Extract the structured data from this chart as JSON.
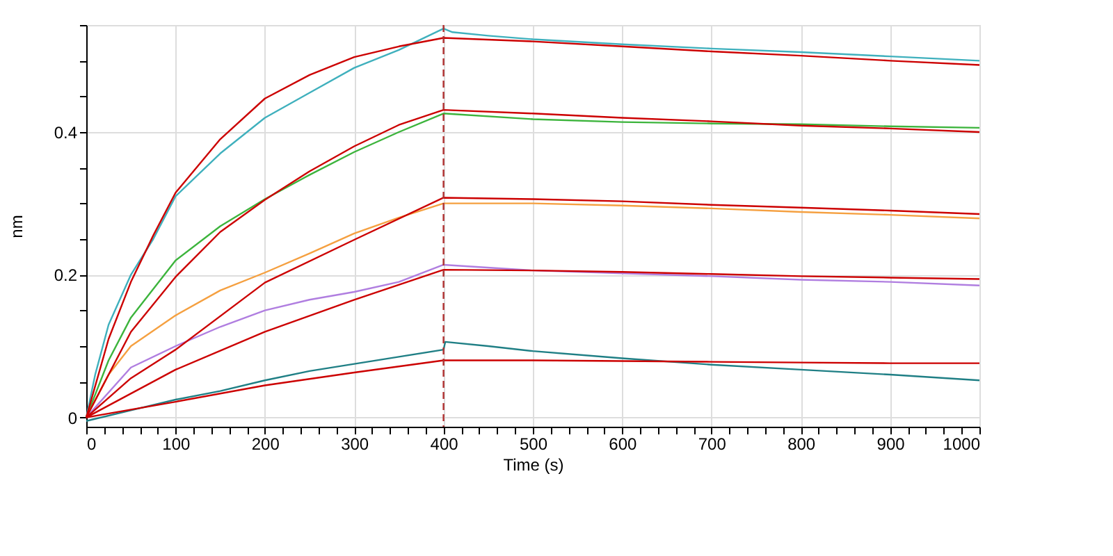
{
  "chart_data": {
    "type": "line",
    "xlabel": "Time (s)",
    "ylabel": "nm",
    "xlim": [
      0,
      1000
    ],
    "ylim": [
      -0.013,
      0.55
    ],
    "xticks": [
      0,
      {
        "value": 20,
        "label": null
      },
      {
        "value": 40,
        "label": null
      },
      {
        "value": 60,
        "label": null
      },
      {
        "value": 80,
        "label": null
      },
      100,
      {
        "value": 120,
        "label": null
      },
      {
        "value": 140,
        "label": null
      },
      {
        "value": 160,
        "label": null
      },
      {
        "value": 180,
        "label": null
      },
      200,
      {
        "value": 220,
        "label": null
      },
      {
        "value": 240,
        "label": null
      },
      {
        "value": 260,
        "label": null
      },
      {
        "value": 280,
        "label": null
      },
      300,
      {
        "value": 320,
        "label": null
      },
      {
        "value": 340,
        "label": null
      },
      {
        "value": 360,
        "label": null
      },
      {
        "value": 380,
        "label": null
      },
      400,
      {
        "value": 420,
        "label": null
      },
      {
        "value": 440,
        "label": null
      },
      {
        "value": 460,
        "label": null
      },
      {
        "value": 480,
        "label": null
      },
      500,
      {
        "value": 520,
        "label": null
      },
      {
        "value": 540,
        "label": null
      },
      {
        "value": 560,
        "label": null
      },
      {
        "value": 580,
        "label": null
      },
      600,
      {
        "value": 620,
        "label": null
      },
      {
        "value": 640,
        "label": null
      },
      {
        "value": 660,
        "label": null
      },
      {
        "value": 680,
        "label": null
      },
      700,
      {
        "value": 720,
        "label": null
      },
      {
        "value": 740,
        "label": null
      },
      {
        "value": 760,
        "label": null
      },
      {
        "value": 780,
        "label": null
      },
      800,
      {
        "value": 820,
        "label": null
      },
      {
        "value": 840,
        "label": null
      },
      {
        "value": 860,
        "label": null
      },
      {
        "value": 880,
        "label": null
      },
      900,
      {
        "value": 920,
        "label": null
      },
      {
        "value": 940,
        "label": null
      },
      {
        "value": 960,
        "label": null
      },
      {
        "value": 980,
        "label": null
      },
      1000
    ],
    "yticks": [
      0,
      {
        "value": 0.05,
        "label": null
      },
      {
        "value": 0.1,
        "label": null
      },
      {
        "value": 0.15,
        "label": null
      },
      0.2,
      {
        "value": 0.25,
        "label": null
      },
      {
        "value": 0.3,
        "label": null
      },
      {
        "value": 0.35,
        "label": null
      },
      0.4,
      {
        "value": 0.45,
        "label": null
      },
      {
        "value": 0.5,
        "label": null
      },
      {
        "value": 0.55,
        "label": null
      }
    ],
    "grid": true,
    "legend": false,
    "marker": "none",
    "line_style": "solid",
    "ref_lines": [
      {
        "axis": "x",
        "value": 400,
        "label": null,
        "color": "#b03030",
        "line_style": "dashed"
      }
    ],
    "series": [
      {
        "color": "#3fb0bd",
        "x": [
          0,
          10,
          25,
          50,
          75,
          100,
          150,
          200,
          250,
          300,
          350,
          400,
          410,
          450,
          500,
          600,
          700,
          800,
          900,
          1000
        ],
        "values": [
          0,
          0.06,
          0.13,
          0.2,
          0.25,
          0.31,
          0.37,
          0.42,
          0.455,
          0.49,
          0.515,
          0.545,
          0.54,
          0.535,
          0.53,
          0.523,
          0.517,
          0.512,
          0.506,
          0.5
        ]
      },
      {
        "color": "#3cb43c",
        "x": [
          0,
          25,
          50,
          100,
          150,
          200,
          250,
          300,
          350,
          400,
          500,
          600,
          700,
          800,
          900,
          1000
        ],
        "values": [
          0,
          0.08,
          0.14,
          0.22,
          0.268,
          0.306,
          0.34,
          0.372,
          0.4,
          0.426,
          0.418,
          0.414,
          0.412,
          0.411,
          0.408,
          0.406
        ]
      },
      {
        "color": "#f5a040",
        "x": [
          0,
          25,
          50,
          100,
          150,
          200,
          250,
          300,
          350,
          400,
          500,
          600,
          700,
          800,
          900,
          1000
        ],
        "values": [
          0,
          0.06,
          0.1,
          0.143,
          0.178,
          0.203,
          0.23,
          0.258,
          0.28,
          0.3,
          0.3,
          0.297,
          0.293,
          0.288,
          0.284,
          0.279
        ]
      },
      {
        "color": "#b07ee0",
        "x": [
          0,
          50,
          100,
          150,
          200,
          250,
          300,
          350,
          400,
          500,
          600,
          700,
          800,
          900,
          1000
        ],
        "values": [
          0,
          0.07,
          0.1,
          0.127,
          0.15,
          0.165,
          0.176,
          0.19,
          0.214,
          0.206,
          0.202,
          0.198,
          0.193,
          0.19,
          0.185
        ]
      },
      {
        "color": "#1f7f85",
        "x": [
          0,
          50,
          100,
          150,
          200,
          250,
          300,
          350,
          400,
          402,
          450,
          500,
          600,
          700,
          800,
          900,
          1000
        ],
        "values": [
          -0.005,
          0.01,
          0.025,
          0.037,
          0.052,
          0.065,
          0.075,
          0.085,
          0.095,
          0.106,
          0.1,
          0.093,
          0.083,
          0.074,
          0.067,
          0.06,
          0.052
        ]
      },
      {
        "color": "#cc0000",
        "x": [
          0,
          25,
          50,
          75,
          100,
          150,
          200,
          250,
          300,
          350,
          400,
          500,
          600,
          700,
          800,
          900,
          1000
        ],
        "values": [
          0,
          0.11,
          0.19,
          0.255,
          0.315,
          0.39,
          0.447,
          0.48,
          0.505,
          0.52,
          0.532,
          0.527,
          0.52,
          0.513,
          0.507,
          0.5,
          0.494
        ]
      },
      {
        "color": "#cc0000",
        "x": [
          0,
          50,
          100,
          150,
          200,
          250,
          300,
          350,
          400,
          500,
          600,
          700,
          800,
          900,
          1000
        ],
        "values": [
          0,
          0.12,
          0.197,
          0.26,
          0.305,
          0.345,
          0.38,
          0.41,
          0.431,
          0.426,
          0.42,
          0.415,
          0.409,
          0.405,
          0.4
        ]
      },
      {
        "color": "#cc0000",
        "x": [
          0,
          50,
          100,
          200,
          300,
          400,
          500,
          600,
          700,
          800,
          900,
          1000
        ],
        "values": [
          0,
          0.055,
          0.095,
          0.189,
          0.249,
          0.308,
          0.306,
          0.303,
          0.298,
          0.294,
          0.29,
          0.285
        ]
      },
      {
        "color": "#cc0000",
        "x": [
          0,
          100,
          200,
          300,
          400,
          500,
          600,
          700,
          800,
          900,
          1000
        ],
        "values": [
          0,
          0.067,
          0.12,
          0.165,
          0.207,
          0.206,
          0.204,
          0.201,
          0.198,
          0.196,
          0.194
        ]
      },
      {
        "color": "#cc0000",
        "x": [
          0,
          100,
          200,
          300,
          400,
          500,
          600,
          700,
          800,
          900,
          1000
        ],
        "values": [
          0,
          0.022,
          0.045,
          0.063,
          0.08,
          0.08,
          0.079,
          0.078,
          0.077,
          0.076,
          0.076
        ]
      }
    ]
  }
}
